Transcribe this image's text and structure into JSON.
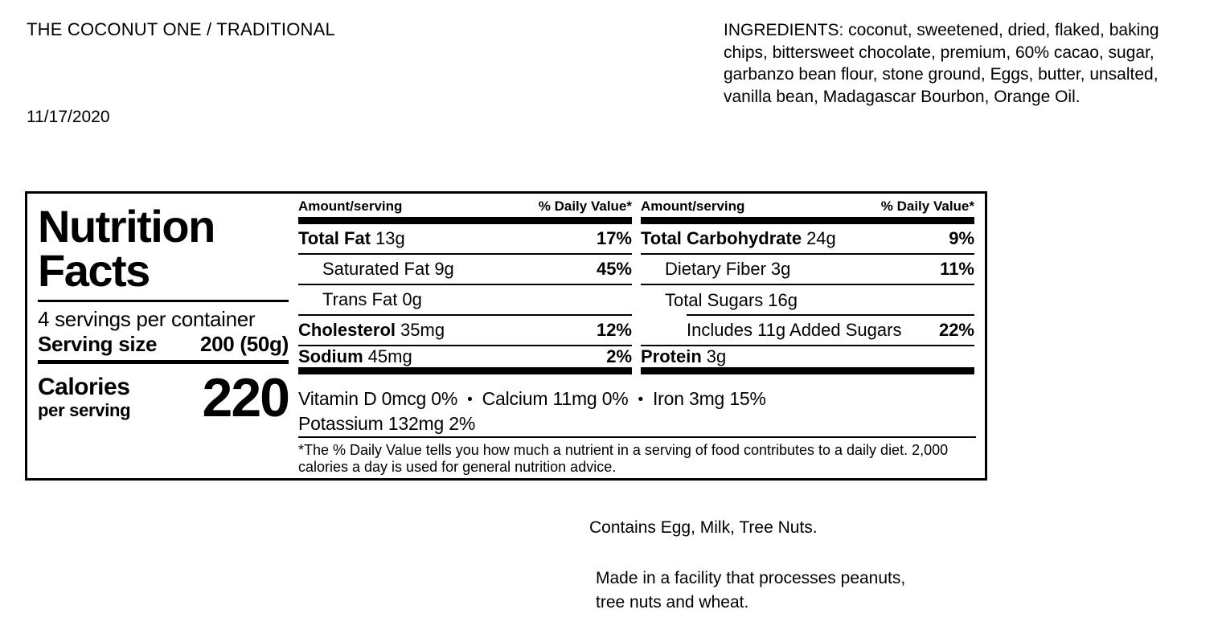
{
  "document": {
    "title": "THE COCONUT ONE / TRADITIONAL",
    "date": "11/17/2020",
    "ingredients": "INGREDIENTS: coconut, sweetened, dried, flaked, baking chips, bittersweet chocolate, premium, 60% cacao, sugar, garbanzo bean flour, stone ground, Eggs, butter, unsalted, vanilla bean, Madagascar Bourbon, Orange Oil.",
    "contains_statement": "Contains Egg, Milk, Tree Nuts.",
    "facility_statement_lines": [
      "Made in a facility that processes peanuts,",
      "tree nuts and wheat."
    ]
  },
  "nutrition_label": {
    "heading_line1": "Nutrition",
    "heading_line2": "Facts",
    "servings_per_container": "4 servings per container",
    "serving_size_label": "Serving size",
    "serving_size_value": "200 (50g)",
    "calories_label": "Calories",
    "calories_sublabel": "per serving",
    "calories_value": "220",
    "amount_header": "Amount/serving",
    "daily_value_header": "% Daily Value*",
    "fat_column": [
      {
        "name": "Total Fat",
        "amount": "13g",
        "daily_value": "17%"
      },
      {
        "name": "Saturated Fat",
        "amount": "9g",
        "daily_value": "45%"
      },
      {
        "name": "Trans Fat",
        "amount": "0g",
        "daily_value": ""
      },
      {
        "name": "Cholesterol",
        "amount": "35mg",
        "daily_value": "12%"
      },
      {
        "name": "Sodium",
        "amount": "45mg",
        "daily_value": "2%"
      }
    ],
    "carb_column": [
      {
        "name": "Total Carbohydrate",
        "amount": "24g",
        "daily_value": "9%"
      },
      {
        "name": "Dietary Fiber",
        "amount": "3g",
        "daily_value": "11%"
      },
      {
        "name": "Total Sugars",
        "amount": "16g",
        "daily_value": ""
      },
      {
        "name": "Includes 11g Added Sugars",
        "amount": "",
        "daily_value": "22%"
      },
      {
        "name": "Protein",
        "amount": "3g",
        "daily_value": ""
      }
    ],
    "micronutrients": [
      "Vitamin D 0mcg 0%",
      "Calcium 11mg 0%",
      "Iron 3mg 15%",
      "Potassium 132mg 2%"
    ],
    "bullet": "•",
    "footnote": "*The % Daily Value tells you how much a nutrient in a serving of food contributes to a daily diet. 2,000 calories a day is used for general nutrition advice."
  }
}
